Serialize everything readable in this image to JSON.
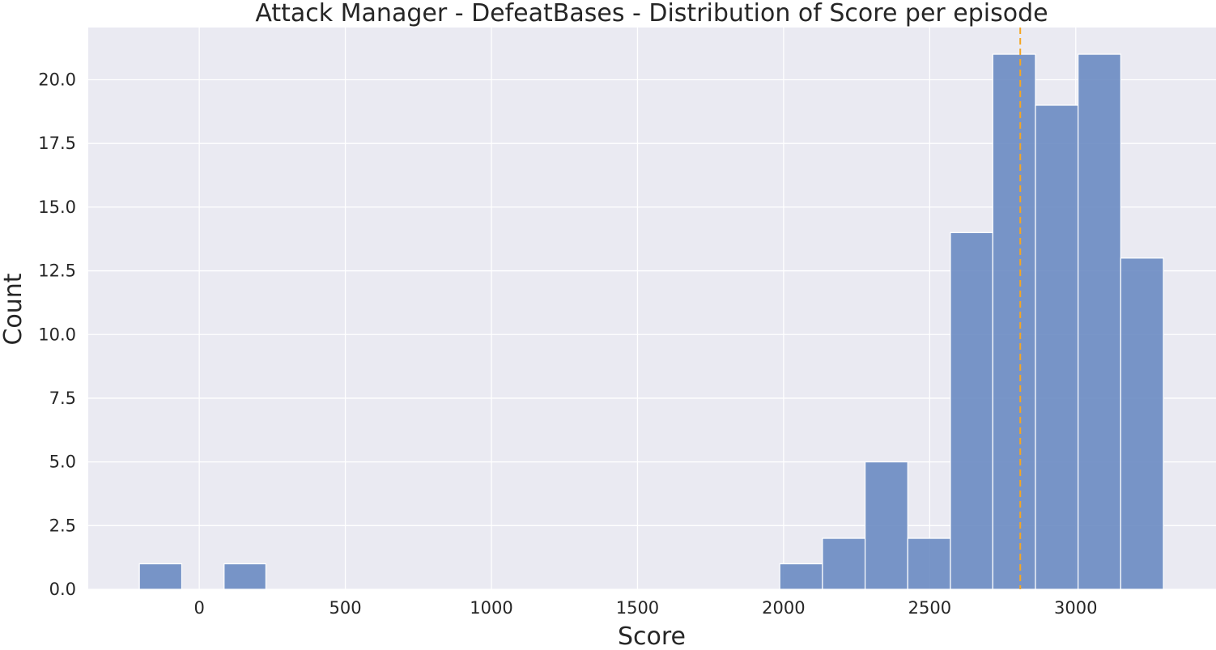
{
  "chart_data": {
    "type": "bar",
    "title": "Attack Manager - DefeatBases - Distribution of Score per episode",
    "xlabel": "Score",
    "ylabel": "Count",
    "xlim": [
      -380,
      3480
    ],
    "ylim": [
      0,
      22.05
    ],
    "xticks": [
      0,
      500,
      1000,
      1500,
      2000,
      2500,
      3000
    ],
    "xtick_labels": [
      "0",
      "500",
      "1000",
      "1500",
      "2000",
      "2500",
      "3000"
    ],
    "yticks": [
      0,
      2.5,
      5,
      7.5,
      10,
      12.5,
      15,
      17.5,
      20
    ],
    "ytick_labels": [
      "0.0",
      "2.5",
      "5.0",
      "7.5",
      "10.0",
      "12.5",
      "15.0",
      "17.5",
      "20.0"
    ],
    "bins": [
      {
        "start": -205,
        "end": -60,
        "count": 1
      },
      {
        "start": 85,
        "end": 228,
        "count": 1
      },
      {
        "start": 1987,
        "end": 2133,
        "count": 1
      },
      {
        "start": 2133,
        "end": 2279,
        "count": 2
      },
      {
        "start": 2279,
        "end": 2425,
        "count": 5
      },
      {
        "start": 2425,
        "end": 2571,
        "count": 2
      },
      {
        "start": 2571,
        "end": 2716,
        "count": 14
      },
      {
        "start": 2716,
        "end": 2862,
        "count": 21
      },
      {
        "start": 2862,
        "end": 3008,
        "count": 19
      },
      {
        "start": 3008,
        "end": 3154,
        "count": 21
      },
      {
        "start": 3154,
        "end": 3300,
        "count": 13
      }
    ],
    "mean_line": 2810,
    "grid": true,
    "colors": {
      "bar": "#6a8bc2",
      "bar_edge": "#ffffff",
      "background": "#eaeaf2",
      "grid": "#ffffff",
      "mean_line": "#f5a623",
      "text": "#262626"
    }
  }
}
